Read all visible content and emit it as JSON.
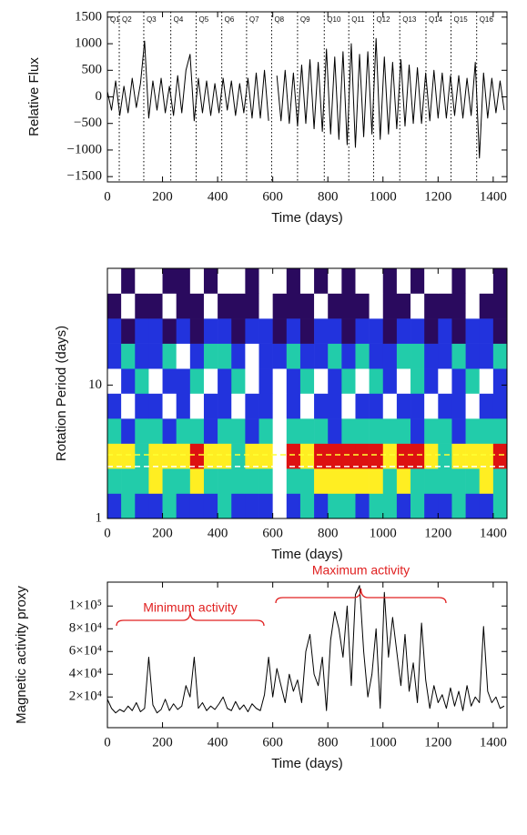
{
  "chart_data": [
    {
      "type": "line",
      "ylabel": "Relative Flux",
      "xlabel": "Time (days)",
      "color": "#000000",
      "xlim": [
        0,
        1450
      ],
      "ylim": [
        -1600,
        1600
      ],
      "xticks": [
        0,
        200,
        400,
        600,
        800,
        1000,
        1200,
        1400
      ],
      "yticks": [
        1500,
        1000,
        500,
        0,
        {
          "value": -500,
          "label": "−500"
        },
        {
          "value": -1000,
          "label": "−1000"
        },
        {
          "value": -1500,
          "label": "−1500"
        }
      ],
      "quarters": [
        "Q1",
        "Q2",
        "Q3",
        "Q4",
        "Q5",
        "Q6",
        "Q7",
        "Q8",
        "Q9",
        "Q10",
        "Q11",
        "Q12",
        "Q13",
        "Q14",
        "Q15",
        "Q16"
      ],
      "quarter_starts": [
        0,
        43,
        132,
        230,
        322,
        415,
        505,
        596,
        690,
        787,
        876,
        966,
        1061,
        1156,
        1247,
        1340
      ],
      "x": [
        0,
        15,
        30,
        45,
        60,
        75,
        90,
        105,
        120,
        135,
        150,
        165,
        180,
        195,
        210,
        225,
        240,
        255,
        270,
        285,
        300,
        315,
        330,
        345,
        360,
        375,
        390,
        405,
        420,
        435,
        450,
        465,
        480,
        495,
        510,
        525,
        540,
        555,
        570,
        585,
        600,
        615,
        630,
        645,
        660,
        675,
        690,
        705,
        720,
        735,
        750,
        765,
        780,
        795,
        810,
        825,
        840,
        855,
        870,
        885,
        900,
        915,
        930,
        945,
        960,
        975,
        990,
        1005,
        1020,
        1035,
        1050,
        1065,
        1080,
        1095,
        1110,
        1125,
        1140,
        1155,
        1170,
        1185,
        1200,
        1215,
        1230,
        1245,
        1260,
        1275,
        1290,
        1305,
        1320,
        1335,
        1350,
        1365,
        1380,
        1395,
        1410,
        1425,
        1440
      ],
      "values": [
        100,
        -250,
        300,
        -350,
        200,
        -300,
        350,
        -200,
        250,
        1050,
        -400,
        300,
        -250,
        350,
        -300,
        200,
        -350,
        400,
        -300,
        500,
        800,
        -450,
        350,
        -300,
        300,
        -350,
        250,
        -300,
        350,
        -250,
        300,
        -350,
        250,
        -300,
        350,
        -400,
        450,
        -400,
        500,
        -450,
        null,
        400,
        -450,
        500,
        -500,
        450,
        -550,
        600,
        -500,
        700,
        -600,
        650,
        -650,
        900,
        -700,
        750,
        -800,
        850,
        -900,
        1000,
        -950,
        800,
        -750,
        850,
        -700,
        1100,
        -800,
        750,
        -700,
        650,
        -600,
        700,
        -550,
        600,
        -500,
        550,
        -500,
        450,
        -450,
        500,
        -400,
        450,
        -400,
        400,
        -350,
        400,
        -400,
        350,
        -350,
        650,
        -1150,
        450,
        -400,
        350,
        -300,
        300,
        -250
      ]
    },
    {
      "type": "heatmap",
      "ylabel": "Rotation Period (days)",
      "xlabel": "Time (days)",
      "log_y": true,
      "xlim": [
        0,
        1450
      ],
      "ylim": [
        1,
        75
      ],
      "xticks": [
        0,
        200,
        400,
        600,
        800,
        1000,
        1200,
        1400
      ],
      "yticks": [
        1,
        10
      ],
      "palette": [
        "#ffffff",
        "#2a0a5e",
        "#2233dd",
        "#22ccaa",
        "#ffee22",
        "#dd1111"
      ],
      "x_edges": [
        0,
        50,
        100,
        150,
        200,
        250,
        300,
        350,
        400,
        450,
        500,
        550,
        600,
        650,
        700,
        750,
        800,
        850,
        900,
        950,
        1000,
        1050,
        1100,
        1150,
        1200,
        1250,
        1300,
        1350,
        1400,
        1450
      ],
      "y_edges": [
        1,
        1.54,
        2.37,
        3.65,
        5.62,
        8.66,
        13.3,
        20.5,
        31.6,
        48.7,
        75
      ],
      "z": [
        [
          2,
          3,
          2,
          2,
          3,
          2,
          2,
          2,
          3,
          2,
          2,
          2,
          0,
          2,
          3,
          2,
          3,
          3,
          2,
          3,
          3,
          2,
          3,
          2,
          2,
          3,
          2,
          2,
          3
        ],
        [
          3,
          3,
          3,
          4,
          3,
          3,
          4,
          3,
          3,
          3,
          3,
          3,
          0,
          3,
          3,
          4,
          4,
          4,
          4,
          4,
          3,
          4,
          3,
          3,
          3,
          3,
          3,
          4,
          3
        ],
        [
          4,
          4,
          3,
          4,
          4,
          4,
          5,
          4,
          4,
          3,
          4,
          4,
          0,
          5,
          4,
          5,
          5,
          5,
          5,
          5,
          4,
          5,
          5,
          4,
          3,
          4,
          4,
          4,
          5
        ],
        [
          3,
          2,
          3,
          3,
          2,
          3,
          3,
          2,
          3,
          3,
          2,
          3,
          0,
          3,
          3,
          3,
          2,
          3,
          3,
          3,
          3,
          3,
          2,
          3,
          3,
          2,
          3,
          3,
          3
        ],
        [
          2,
          0,
          2,
          2,
          0,
          2,
          0,
          2,
          2,
          0,
          2,
          2,
          0,
          2,
          0,
          2,
          2,
          0,
          2,
          2,
          0,
          2,
          2,
          0,
          2,
          2,
          0,
          2,
          2
        ],
        [
          0,
          2,
          3,
          0,
          2,
          2,
          3,
          0,
          2,
          3,
          0,
          2,
          0,
          2,
          3,
          0,
          2,
          3,
          0,
          3,
          2,
          0,
          3,
          2,
          0,
          2,
          3,
          0,
          2
        ],
        [
          2,
          3,
          2,
          2,
          3,
          0,
          2,
          3,
          3,
          2,
          0,
          2,
          2,
          3,
          2,
          2,
          3,
          2,
          3,
          2,
          2,
          3,
          3,
          2,
          2,
          3,
          2,
          2,
          3
        ],
        [
          2,
          1,
          2,
          2,
          1,
          2,
          1,
          2,
          2,
          1,
          2,
          2,
          1,
          2,
          1,
          2,
          2,
          1,
          2,
          2,
          1,
          2,
          2,
          1,
          2,
          1,
          2,
          2,
          1
        ],
        [
          1,
          0,
          1,
          1,
          0,
          1,
          1,
          0,
          1,
          1,
          1,
          0,
          1,
          1,
          1,
          0,
          1,
          1,
          1,
          0,
          1,
          1,
          0,
          1,
          1,
          1,
          0,
          1,
          1
        ],
        [
          0,
          1,
          0,
          0,
          1,
          1,
          0,
          1,
          0,
          0,
          1,
          0,
          0,
          1,
          0,
          1,
          0,
          1,
          0,
          0,
          1,
          0,
          1,
          0,
          0,
          1,
          0,
          0,
          1
        ]
      ],
      "reference_lines": [
        {
          "value": 3.0,
          "color": "#ffff33"
        },
        {
          "value": 2.45,
          "color": "#ffffff"
        }
      ]
    },
    {
      "type": "line",
      "ylabel": "Magnetic activity proxy",
      "xlabel": "Time (days)",
      "color": "#000000",
      "xlim": [
        0,
        1450
      ],
      "ylim": [
        -7000,
        121000
      ],
      "xticks": [
        0,
        200,
        400,
        600,
        800,
        1000,
        1200,
        1400
      ],
      "yticks": [
        {
          "value": 20000,
          "label": "2×10⁴"
        },
        {
          "value": 40000,
          "label": "4×10⁴"
        },
        {
          "value": 60000,
          "label": "6×10⁴"
        },
        {
          "value": 80000,
          "label": "8×10⁴"
        },
        {
          "value": 100000,
          "label": "1×10⁵"
        }
      ],
      "annotations": [
        "Minimum activity",
        "Maximum activity"
      ],
      "x": [
        0,
        15,
        30,
        45,
        60,
        75,
        90,
        105,
        120,
        135,
        150,
        165,
        180,
        195,
        210,
        225,
        240,
        255,
        270,
        285,
        300,
        315,
        330,
        345,
        360,
        375,
        390,
        405,
        420,
        435,
        450,
        465,
        480,
        495,
        510,
        525,
        540,
        555,
        570,
        585,
        600,
        615,
        630,
        645,
        660,
        675,
        690,
        705,
        720,
        735,
        750,
        765,
        780,
        795,
        810,
        825,
        840,
        855,
        870,
        885,
        900,
        915,
        930,
        945,
        960,
        975,
        990,
        1005,
        1020,
        1035,
        1050,
        1065,
        1080,
        1095,
        1110,
        1125,
        1140,
        1155,
        1170,
        1185,
        1200,
        1215,
        1230,
        1245,
        1260,
        1275,
        1290,
        1305,
        1320,
        1335,
        1350,
        1365,
        1380,
        1395,
        1410,
        1425,
        1440
      ],
      "values": [
        18000,
        10000,
        6000,
        9000,
        7000,
        12000,
        8000,
        15000,
        7000,
        10000,
        55000,
        13000,
        6000,
        9000,
        18000,
        8000,
        14000,
        9000,
        12000,
        30000,
        20000,
        55000,
        10000,
        15000,
        8000,
        12000,
        9000,
        14000,
        20000,
        10000,
        8000,
        16000,
        9000,
        13000,
        7000,
        14000,
        10000,
        8000,
        22000,
        55000,
        20000,
        45000,
        30000,
        15000,
        40000,
        25000,
        35000,
        15000,
        60000,
        75000,
        40000,
        30000,
        55000,
        8000,
        70000,
        95000,
        80000,
        55000,
        100000,
        30000,
        110000,
        118000,
        60000,
        20000,
        40000,
        80000,
        10000,
        112000,
        55000,
        90000,
        60000,
        30000,
        75000,
        25000,
        50000,
        15000,
        85000,
        35000,
        10000,
        30000,
        15000,
        22000,
        10000,
        28000,
        12000,
        25000,
        8000,
        30000,
        12000,
        20000,
        15000,
        82000,
        25000,
        15000,
        20000,
        10000,
        12000
      ]
    }
  ]
}
